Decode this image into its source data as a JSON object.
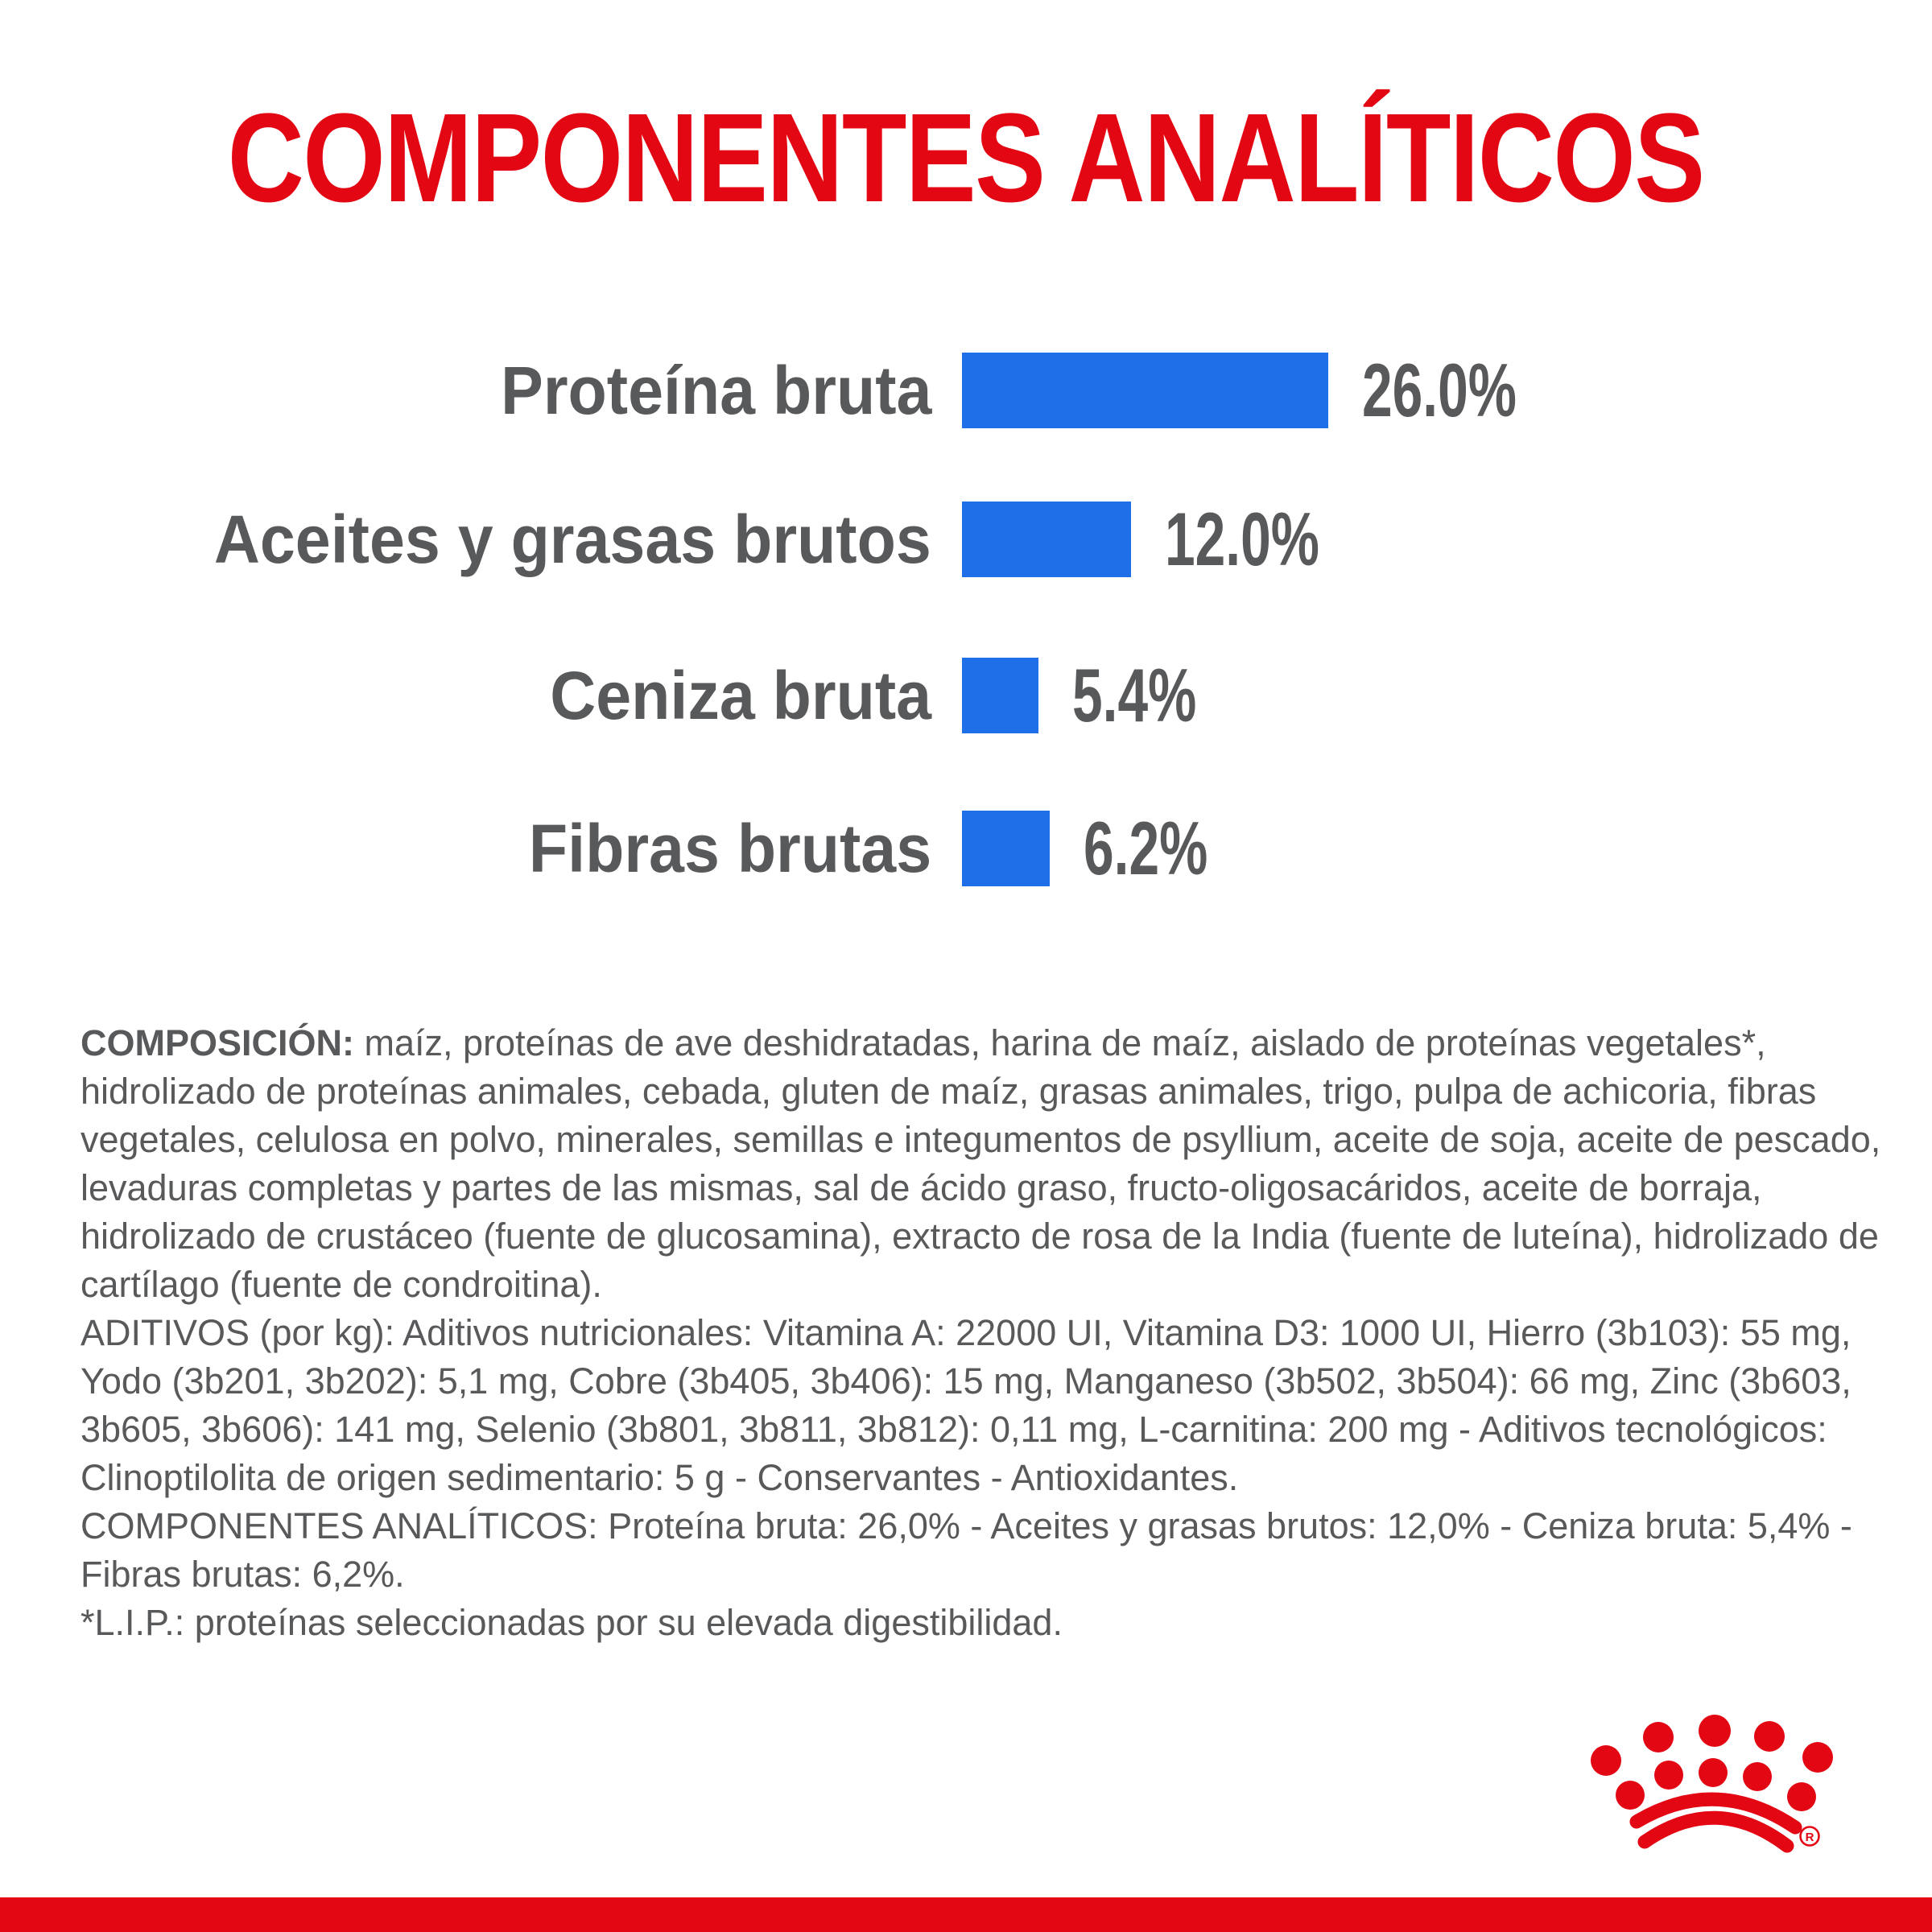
{
  "title": "COMPONENTES ANALÍTICOS",
  "colors": {
    "brand_red": "#E30613",
    "bar_blue": "#1E6FE8",
    "text_gray": "#58595B",
    "background": "#FFFFFF"
  },
  "chart_data": {
    "type": "bar",
    "orientation": "horizontal",
    "title": "COMPONENTES ANALÍTICOS",
    "categories": [
      "Proteína bruta",
      "Aceites y grasas brutos",
      "Ceniza bruta",
      "Fibras brutas"
    ],
    "values": [
      26.0,
      12.0,
      5.4,
      6.2
    ],
    "value_labels": [
      "26.0%",
      "12.0%",
      "5.4%",
      "6.2%"
    ],
    "unit": "%",
    "xlim": [
      0,
      30
    ],
    "bar_color": "#1E6FE8",
    "label_color": "#58595B",
    "grid": false,
    "legend": false,
    "axes_shown": false
  },
  "body": {
    "composicion_label": "COMPOSICIÓN:",
    "composicion_text": " maíz, proteínas de ave deshidratadas, harina de maíz, aislado de proteínas vegetales*, hidrolizado de proteínas animales, cebada, gluten de maíz, grasas animales, trigo, pulpa de achicoria, fibras vegetales, celulosa en polvo, minerales, semillas e integumentos de psyllium, aceite de soja, aceite de pescado, levaduras completas y partes de las mismas, sal de ácido graso, fructo-oligosacáridos, aceite de borraja, hidrolizado de crustáceo (fuente de glucosamina), extracto de rosa de la India (fuente de luteína), hidrolizado de cartílago (fuente de condroitina).",
    "aditivos_text": "ADITIVOS (por kg): Aditivos nutricionales: Vitamina A: 22000 UI, Vitamina D3: 1000 UI, Hierro (3b103): 55 mg, Yodo (3b201, 3b202): 5,1 mg, Cobre (3b405, 3b406): 15 mg, Manganeso (3b502, 3b504): 66 mg, Zinc (3b603, 3b605, 3b606): 141 mg, Selenio (3b801, 3b811, 3b812): 0,11 mg, L-carnitina: 200 mg - Aditivos tecnológicos: Clinoptilolita de origen sedimentario: 5 g - Conservantes - Antioxidantes.",
    "componentes_text": "COMPONENTES ANALÍTICOS: Proteína bruta: 26,0% - Aceites y grasas brutos: 12,0% - Ceniza bruta: 5,4% - Fibras brutas: 6,2%.",
    "lip_text": "*L.I.P.: proteínas seleccionadas por su elevada digestibilidad."
  },
  "footer": {
    "brand_logo": "royal-canin-crown",
    "registered_mark": "R",
    "band_color": "#E30613"
  }
}
